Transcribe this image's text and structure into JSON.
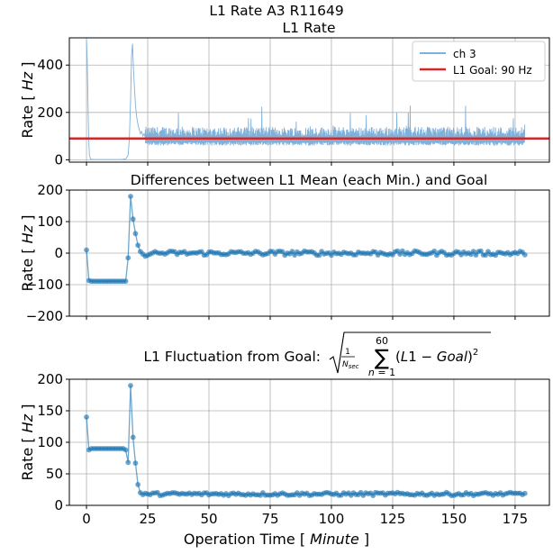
{
  "figure": {
    "suptitle": "L1 Rate A3 R11649",
    "xlabel_prefix": "Operation Time [ ",
    "xlabel_unit": "Minute",
    "xlabel_suffix": " ]"
  },
  "colors": {
    "series": "#1f77b4",
    "rate_line": "#7fb0d9",
    "goal": "#d62728"
  },
  "chart_data": [
    {
      "type": "line",
      "title": "L1 Rate",
      "ylabel_prefix": "Rate [ ",
      "ylabel_unit": "Hz",
      "ylabel_suffix": " ]",
      "xlim": [
        -7,
        189
      ],
      "ylim": [
        -10,
        515
      ],
      "xticks": [
        0,
        25,
        50,
        75,
        100,
        125,
        150,
        175
      ],
      "yticks": [
        0,
        200,
        400
      ],
      "grid": true,
      "legend": {
        "position": "top-right",
        "entries": [
          "ch 3",
          "L1 Goal: 90 Hz"
        ]
      },
      "goal": 90,
      "series": [
        {
          "name": "ch 3",
          "x": [
            0,
            0.3,
            0.6,
            0.9,
            1.2,
            1.6,
            2,
            3,
            5,
            8,
            11,
            14,
            16,
            17,
            17.5,
            18,
            18.4,
            18.8,
            19.2,
            19.6,
            20,
            20.5,
            21,
            21.5,
            22,
            22.5,
            23,
            23.5,
            24
          ],
          "y": [
            510,
            420,
            250,
            90,
            20,
            5,
            2,
            1,
            1,
            1,
            1,
            1,
            3,
            20,
            90,
            250,
            440,
            490,
            380,
            300,
            230,
            180,
            150,
            130,
            110,
            120,
            100,
            110,
            95
          ],
          "noise_band": {
            "x_start": 24,
            "x_end": 179,
            "low_min": 60,
            "low_max": 75,
            "high_min": 100,
            "high_max": 140,
            "spike_max": 235
          }
        }
      ]
    },
    {
      "type": "line",
      "title": "Differences between L1 Mean (each Min.) and  Goal",
      "ylabel_prefix": "Rate [ ",
      "ylabel_unit": "Hz",
      "ylabel_suffix": " ]",
      "xlim": [
        -7,
        189
      ],
      "ylim": [
        -200,
        200
      ],
      "xticks": [
        0,
        25,
        50,
        75,
        100,
        125,
        150,
        175
      ],
      "yticks": [
        -200,
        -100,
        0,
        100,
        200
      ],
      "ytick_labels": [
        "−200",
        "−100",
        "0",
        "100",
        "200"
      ],
      "grid": true,
      "series": [
        {
          "name": "",
          "x": [
            0,
            1,
            2,
            3,
            4,
            5,
            6,
            7,
            8,
            9,
            10,
            11,
            12,
            13,
            14,
            15,
            16,
            17,
            18,
            19,
            20,
            21,
            22,
            23,
            24,
            25,
            26
          ],
          "y": [
            10,
            -87,
            -89,
            -89,
            -89,
            -89,
            -89,
            -89,
            -89,
            -89,
            -89,
            -89,
            -89,
            -89,
            -89,
            -89,
            -89,
            -15,
            180,
            108,
            62,
            25,
            5,
            -3,
            -10,
            -7,
            -3
          ],
          "continuation": {
            "x_start": 27,
            "x_end": 179,
            "center": 0,
            "spread": 7
          }
        }
      ]
    },
    {
      "type": "line",
      "title": "L1 Fluctuation from Goal: ",
      "formula": "sqrt( (1/N_sec) * sum_{n=1}^{60} (L1 - Goal)^2 )",
      "ylabel_prefix": "Rate [ ",
      "ylabel_unit": "Hz",
      "ylabel_suffix": " ]",
      "xlim": [
        -7,
        189
      ],
      "ylim": [
        0,
        200
      ],
      "xticks": [
        0,
        25,
        50,
        75,
        100,
        125,
        150,
        175
      ],
      "xtick_labels": [
        "0",
        "25",
        "50",
        "75",
        "100",
        "125",
        "150",
        "175"
      ],
      "yticks": [
        0,
        50,
        100,
        150,
        200
      ],
      "grid": true,
      "series": [
        {
          "name": "",
          "x": [
            0,
            1,
            2,
            3,
            4,
            5,
            6,
            7,
            8,
            9,
            10,
            11,
            12,
            13,
            14,
            15,
            16,
            17,
            18,
            19,
            20,
            21,
            22,
            23,
            24,
            25,
            26
          ],
          "y": [
            140,
            88,
            90,
            90,
            90,
            90,
            90,
            90,
            90,
            90,
            90,
            90,
            90,
            90,
            90,
            90,
            88,
            68,
            190,
            108,
            67,
            33,
            20,
            17,
            19,
            18,
            17
          ],
          "continuation": {
            "x_start": 27,
            "x_end": 179,
            "center": 18,
            "spread": 2.5
          }
        }
      ]
    }
  ]
}
